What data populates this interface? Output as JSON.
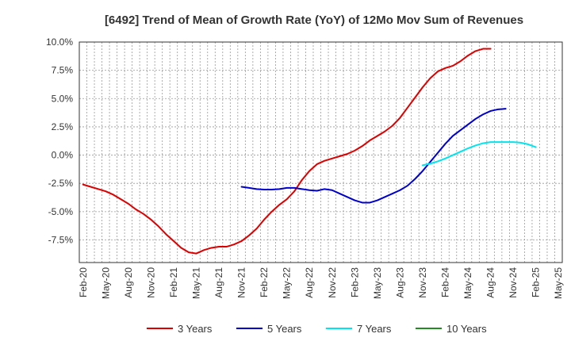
{
  "chart_data": {
    "type": "line",
    "title": "[6492]  Trend of Mean of Growth Rate (YoY) of 12Mo Mov Sum of Revenues",
    "xlabel": "",
    "ylabel": "",
    "ylim": [
      -9.5,
      10.0
    ],
    "ytick_values": [
      10.0,
      7.5,
      5.0,
      2.5,
      0.0,
      -2.5,
      -5.0,
      -7.5
    ],
    "ytick_labels": [
      "10.0%",
      "7.5%",
      "5.0%",
      "2.5%",
      "0.0%",
      "-2.5%",
      "-5.0%",
      "-7.5%"
    ],
    "x_start_label": "Feb-20",
    "x_month_count": 64,
    "xtick_labels": [
      "Feb-20",
      "May-20",
      "Aug-20",
      "Nov-20",
      "Feb-21",
      "May-21",
      "Aug-21",
      "Nov-21",
      "Feb-22",
      "May-22",
      "Aug-22",
      "Nov-22",
      "Feb-23",
      "May-23",
      "Aug-23",
      "Nov-23",
      "Feb-24",
      "May-24",
      "Aug-24",
      "Nov-24",
      "Feb-25",
      "May-25"
    ],
    "legend_position": "bottom",
    "series": [
      {
        "name": "3 Years",
        "color": "#dd0000",
        "start_index": 0,
        "values": [
          -2.6,
          -2.8,
          -3.0,
          -3.2,
          -3.5,
          -3.9,
          -4.3,
          -4.8,
          -5.2,
          -5.7,
          -6.3,
          -7.0,
          -7.6,
          -8.2,
          -8.6,
          -8.7,
          -8.4,
          -8.2,
          -8.1,
          -8.1,
          -7.9,
          -7.6,
          -7.1,
          -6.5,
          -5.7,
          -5.0,
          -4.4,
          -3.9,
          -3.2,
          -2.2,
          -1.4,
          -0.8,
          -0.5,
          -0.3,
          -0.1,
          0.1,
          0.4,
          0.8,
          1.3,
          1.7,
          2.1,
          2.6,
          3.3,
          4.2,
          5.1,
          6.0,
          6.8,
          7.4,
          7.7,
          7.9,
          8.3,
          8.8,
          9.2,
          9.4,
          9.4
        ]
      },
      {
        "name": "5 Years",
        "color": "#0000cc",
        "start_index": 21,
        "values": [
          -2.8,
          -2.9,
          -3.0,
          -3.05,
          -3.05,
          -3.0,
          -2.9,
          -2.9,
          -3.0,
          -3.1,
          -3.15,
          -3.0,
          -3.1,
          -3.4,
          -3.7,
          -4.0,
          -4.2,
          -4.2,
          -4.0,
          -3.7,
          -3.4,
          -3.1,
          -2.7,
          -2.1,
          -1.4,
          -0.6,
          0.2,
          1.0,
          1.7,
          2.2,
          2.7,
          3.2,
          3.6,
          3.9,
          4.05,
          4.1
        ]
      },
      {
        "name": "7 Years",
        "color": "#00e5ee",
        "start_index": 45,
        "values": [
          -0.9,
          -0.75,
          -0.55,
          -0.3,
          0.0,
          0.3,
          0.6,
          0.85,
          1.05,
          1.15,
          1.15,
          1.15,
          1.15,
          1.1,
          0.95,
          0.7
        ]
      },
      {
        "name": "10 Years",
        "color": "#228b22",
        "start_index": 0,
        "values": []
      }
    ]
  }
}
